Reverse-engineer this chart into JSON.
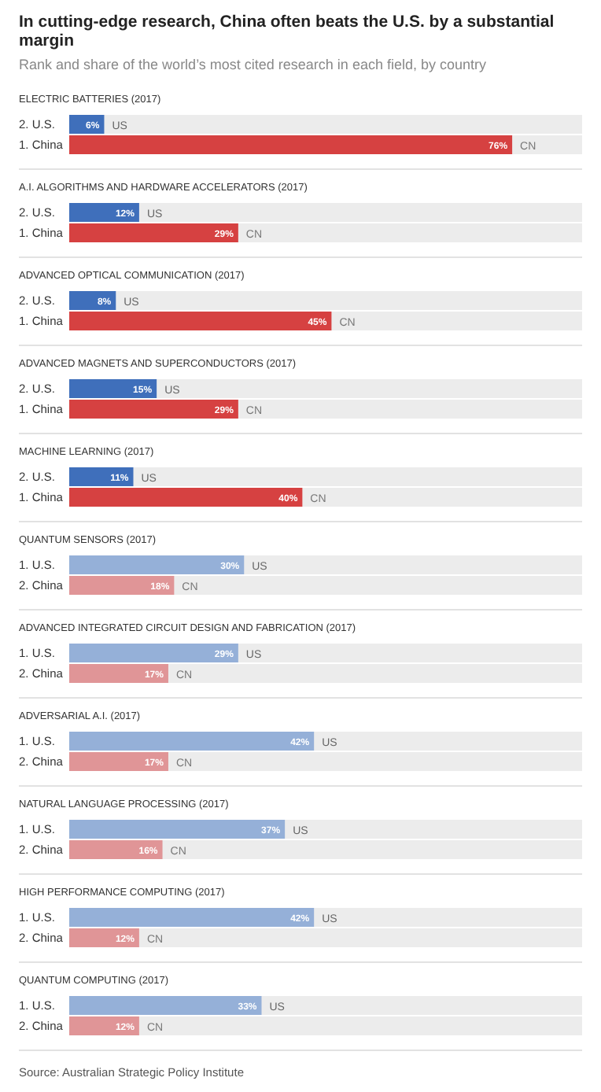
{
  "chart_data": [
    {
      "type": "bar",
      "orientation": "horizontal",
      "title": "In cutting-edge research, China often beats the U.S. by a substantial margin",
      "subtitle": "Rank and share of the world’s most cited research in each field, by country",
      "xlabel": "ELECTRIC BATTERIES (2017)",
      "categories": [
        "2. U.S.",
        "1. China"
      ],
      "values": [
        6,
        76
      ],
      "colors": [
        "#3f6fbb",
        "#d64141"
      ],
      "value_labels": [
        "6%",
        "76%"
      ],
      "annotations": [
        {
          "text": "US",
          "x": 6,
          "y": "2. U.S."
        },
        {
          "text": "CN",
          "x": 76,
          "y": "1. China"
        }
      ],
      "xlim": [
        0,
        88
      ],
      "tick_labels": "y"
    },
    {
      "type": "bar",
      "orientation": "horizontal",
      "xlabel": "A.I. ALGORITHMS AND HARDWARE ACCELERATORS (2017)",
      "categories": [
        "2. U.S.",
        "1. China"
      ],
      "values": [
        12,
        29
      ],
      "colors": [
        "#3f6fbb",
        "#d64141"
      ],
      "value_labels": [
        "12%",
        "29%"
      ],
      "annotations": [
        {
          "text": "US",
          "x": 12,
          "y": "2. U.S."
        },
        {
          "text": "CN",
          "x": 29,
          "y": "1. China"
        }
      ],
      "xlim": [
        0,
        88
      ],
      "tick_labels": "y"
    },
    {
      "type": "bar",
      "orientation": "horizontal",
      "xlabel": "ADVANCED OPTICAL COMMUNICATION (2017)",
      "categories": [
        "2. U.S.",
        "1. China"
      ],
      "values": [
        8,
        45
      ],
      "colors": [
        "#3f6fbb",
        "#d64141"
      ],
      "value_labels": [
        "8%",
        "45%"
      ],
      "annotations": [
        {
          "text": "US",
          "x": 8,
          "y": "2. U.S."
        },
        {
          "text": "CN",
          "x": 45,
          "y": "1. China"
        }
      ],
      "xlim": [
        0,
        88
      ],
      "tick_labels": "y"
    },
    {
      "type": "bar",
      "orientation": "horizontal",
      "xlabel": "ADVANCED MAGNETS AND SUPERCONDUCTORS (2017)",
      "categories": [
        "2. U.S.",
        "1. China"
      ],
      "values": [
        15,
        29
      ],
      "colors": [
        "#3f6fbb",
        "#d64141"
      ],
      "value_labels": [
        "15%",
        "29%"
      ],
      "annotations": [
        {
          "text": "US",
          "x": 15,
          "y": "2. U.S."
        },
        {
          "text": "CN",
          "x": 29,
          "y": "1. China"
        }
      ],
      "xlim": [
        0,
        88
      ],
      "tick_labels": "y"
    },
    {
      "type": "bar",
      "orientation": "horizontal",
      "xlabel": "MACHINE LEARNING (2017)",
      "categories": [
        "2. U.S.",
        "1. China"
      ],
      "values": [
        11,
        40
      ],
      "colors": [
        "#3f6fbb",
        "#d64141"
      ],
      "value_labels": [
        "11%",
        "40%"
      ],
      "annotations": [
        {
          "text": "US",
          "x": 11,
          "y": "2. U.S."
        },
        {
          "text": "CN",
          "x": 40,
          "y": "1. China"
        }
      ],
      "xlim": [
        0,
        88
      ],
      "tick_labels": "y"
    },
    {
      "type": "bar",
      "orientation": "horizontal",
      "xlabel": "QUANTUM SENSORS (2017)",
      "categories": [
        "1. U.S.",
        "2. China"
      ],
      "values": [
        30,
        18
      ],
      "colors": [
        "#95b0d8",
        "#e09597"
      ],
      "value_labels": [
        "30%",
        "18%"
      ],
      "annotations": [
        {
          "text": "US",
          "x": 30,
          "y": "1. U.S."
        },
        {
          "text": "CN",
          "x": 18,
          "y": "2. China"
        }
      ],
      "xlim": [
        0,
        88
      ],
      "tick_labels": "y"
    },
    {
      "type": "bar",
      "orientation": "horizontal",
      "xlabel": "ADVANCED INTEGRATED CIRCUIT DESIGN AND FABRICATION (2017)",
      "categories": [
        "1. U.S.",
        "2. China"
      ],
      "values": [
        29,
        17
      ],
      "colors": [
        "#95b0d8",
        "#e09597"
      ],
      "value_labels": [
        "29%",
        "17%"
      ],
      "annotations": [
        {
          "text": "US",
          "x": 29,
          "y": "1. U.S."
        },
        {
          "text": "CN",
          "x": 17,
          "y": "2. China"
        }
      ],
      "xlim": [
        0,
        88
      ],
      "tick_labels": "y"
    },
    {
      "type": "bar",
      "orientation": "horizontal",
      "xlabel": "ADVERSARIAL A.I. (2017)",
      "categories": [
        "1. U.S.",
        "2. China"
      ],
      "values": [
        42,
        17
      ],
      "colors": [
        "#95b0d8",
        "#e09597"
      ],
      "value_labels": [
        "42%",
        "17%"
      ],
      "annotations": [
        {
          "text": "US",
          "x": 42,
          "y": "1. U.S."
        },
        {
          "text": "CN",
          "x": 17,
          "y": "2. China"
        }
      ],
      "xlim": [
        0,
        88
      ],
      "tick_labels": "y"
    },
    {
      "type": "bar",
      "orientation": "horizontal",
      "xlabel": "NATURAL LANGUAGE PROCESSING (2017)",
      "categories": [
        "1. U.S.",
        "2. China"
      ],
      "values": [
        37,
        16
      ],
      "colors": [
        "#95b0d8",
        "#e09597"
      ],
      "value_labels": [
        "37%",
        "16%"
      ],
      "annotations": [
        {
          "text": "US",
          "x": 37,
          "y": "1. U.S."
        },
        {
          "text": "CN",
          "x": 16,
          "y": "2. China"
        }
      ],
      "xlim": [
        0,
        88
      ],
      "tick_labels": "y"
    },
    {
      "type": "bar",
      "orientation": "horizontal",
      "xlabel": "HIGH PERFORMANCE COMPUTING (2017)",
      "categories": [
        "1. U.S.",
        "2. China"
      ],
      "values": [
        42,
        12
      ],
      "colors": [
        "#95b0d8",
        "#e09597"
      ],
      "value_labels": [
        "42%",
        "12%"
      ],
      "annotations": [
        {
          "text": "US",
          "x": 42,
          "y": "1. U.S."
        },
        {
          "text": "CN",
          "x": 12,
          "y": "2. China"
        }
      ],
      "xlim": [
        0,
        88
      ],
      "tick_labels": "y"
    },
    {
      "type": "bar",
      "orientation": "horizontal",
      "xlabel": "QUANTUM COMPUTING (2017)",
      "categories": [
        "1. U.S.",
        "2. China"
      ],
      "values": [
        33,
        12
      ],
      "colors": [
        "#95b0d8",
        "#e09597"
      ],
      "value_labels": [
        "33%",
        "12%"
      ],
      "annotations": [
        {
          "text": "US",
          "x": 33,
          "y": "1. U.S."
        },
        {
          "text": "CN",
          "x": 12,
          "y": "2. China"
        },
        "Source: Australian Strategic Policy Institute"
      ],
      "xlim": [
        0,
        88
      ],
      "tick_labels": "y"
    }
  ]
}
